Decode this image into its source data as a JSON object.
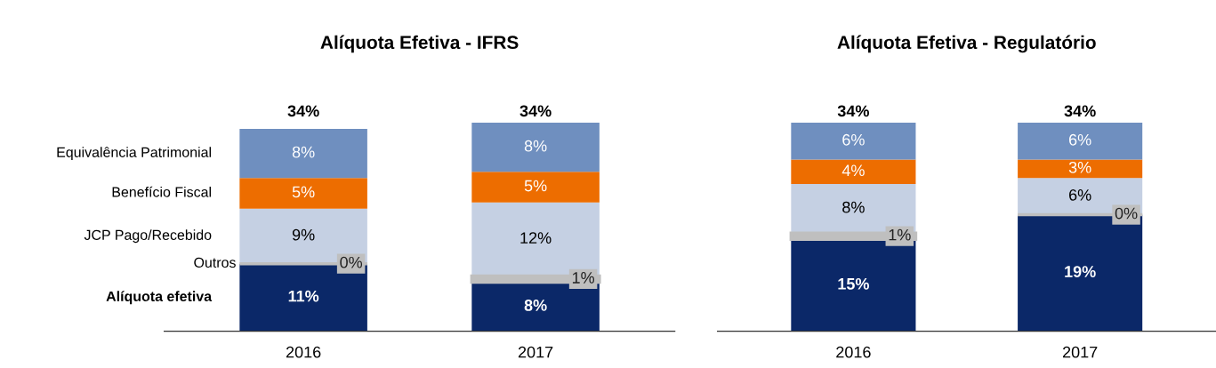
{
  "chart_data": [
    {
      "type": "bar",
      "title": "Alíquota Efetiva - IFRS",
      "categories": [
        "2016",
        "2017"
      ],
      "stacked": true,
      "legend": false,
      "grid": false,
      "tick_labels": "x",
      "totals": [
        "34%",
        "34%"
      ],
      "series": [
        {
          "name": "Alíquota efetiva",
          "color": "#0b2868",
          "values": [
            11,
            8
          ],
          "value_labels": [
            "11%",
            "8%"
          ]
        },
        {
          "name": "Outros",
          "color": "#bfbfbf",
          "values": [
            0,
            1
          ],
          "value_labels": [
            "0%",
            "1%"
          ]
        },
        {
          "name": "JCP Pago/Recebido",
          "color": "#c5d0e3",
          "values": [
            9,
            12
          ],
          "value_labels": [
            "9%",
            "12%"
          ]
        },
        {
          "name": "Benefício Fiscal",
          "color": "#ed6d00",
          "values": [
            5,
            5
          ],
          "value_labels": [
            "5%",
            "5%"
          ]
        },
        {
          "name": "Equivalência Patrimonial",
          "color": "#6f8fbf",
          "values": [
            8,
            8
          ],
          "value_labels": [
            "8%",
            "8%"
          ]
        }
      ]
    },
    {
      "type": "bar",
      "title": "Alíquota Efetiva - Regulatório",
      "categories": [
        "2016",
        "2017"
      ],
      "stacked": true,
      "legend": false,
      "grid": false,
      "tick_labels": "x",
      "totals": [
        "34%",
        "34%"
      ],
      "series": [
        {
          "color": "#0b2868",
          "values": [
            15,
            19
          ],
          "value_labels": [
            "15%",
            "19%"
          ]
        },
        {
          "color": "#bfbfbf",
          "values": [
            1,
            0
          ],
          "value_labels": [
            "1%",
            "0%"
          ]
        },
        {
          "color": "#c5d0e3",
          "values": [
            8,
            6
          ],
          "value_labels": [
            "8%",
            "6%"
          ]
        },
        {
          "color": "#ed6d00",
          "values": [
            4,
            3
          ],
          "value_labels": [
            "4%",
            "3%"
          ]
        },
        {
          "color": "#6f8fbf",
          "values": [
            6,
            6
          ],
          "value_labels": [
            "6%",
            "6%"
          ]
        }
      ]
    }
  ]
}
